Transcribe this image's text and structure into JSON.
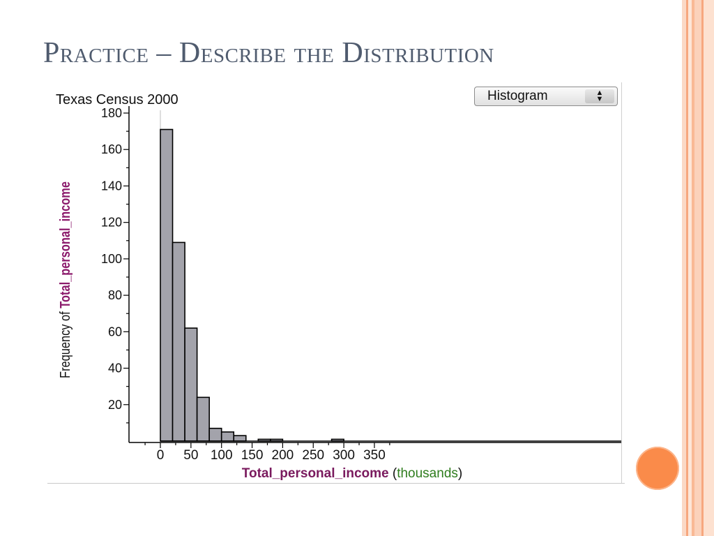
{
  "slide": {
    "title": "Practice – Describe the Distribution"
  },
  "chart_panel": {
    "title": "Texas Census 2000",
    "display_select": {
      "selected": "Histogram"
    }
  },
  "chart_data": {
    "type": "bar",
    "subtype": "histogram",
    "bin_width": 20,
    "bins": [
      {
        "start": 0,
        "end": 20,
        "count": 171
      },
      {
        "start": 20,
        "end": 40,
        "count": 109
      },
      {
        "start": 40,
        "end": 60,
        "count": 62
      },
      {
        "start": 60,
        "end": 80,
        "count": 24
      },
      {
        "start": 80,
        "end": 100,
        "count": 7
      },
      {
        "start": 100,
        "end": 120,
        "count": 5
      },
      {
        "start": 120,
        "end": 140,
        "count": 3
      },
      {
        "start": 140,
        "end": 160,
        "count": 0
      },
      {
        "start": 160,
        "end": 180,
        "count": 1
      },
      {
        "start": 180,
        "end": 200,
        "count": 1
      },
      {
        "start": 200,
        "end": 220,
        "count": 0
      },
      {
        "start": 220,
        "end": 240,
        "count": 0
      },
      {
        "start": 240,
        "end": 260,
        "count": 0
      },
      {
        "start": 260,
        "end": 280,
        "count": 0
      },
      {
        "start": 280,
        "end": 300,
        "count": 1
      },
      {
        "start": 300,
        "end": 320,
        "count": 0
      },
      {
        "start": 320,
        "end": 340,
        "count": 0
      },
      {
        "start": 340,
        "end": 360,
        "count": 0
      }
    ],
    "title": "Texas Census 2000",
    "xlabel_parts": [
      {
        "text": "Total_personal_income",
        "color": "#7a1a5e"
      },
      {
        "text": " (",
        "color": "#111111"
      },
      {
        "text": "thousands",
        "color": "#2f7d1e"
      },
      {
        "text": ")",
        "color": "#111111"
      }
    ],
    "ylabel_parts": [
      {
        "text": "Frequency of ",
        "color": "#111111"
      },
      {
        "text": "Total_personal_income",
        "color": "#8b1a6b"
      }
    ],
    "xlim": [
      -25,
      375
    ],
    "ylim": [
      0,
      180
    ],
    "x_ticks": [
      "0",
      "50",
      "100",
      "150",
      "200",
      "250",
      "300",
      "350"
    ],
    "y_ticks": [
      "20",
      "40",
      "60",
      "80",
      "100",
      "120",
      "140",
      "160",
      "180"
    ],
    "bar_color": "#a3a3ab",
    "bar_outline": "#000000",
    "grid": false,
    "legend": "none"
  }
}
